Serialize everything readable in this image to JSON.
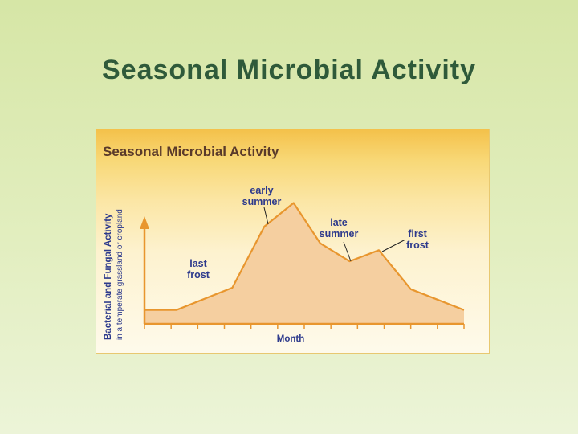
{
  "slide": {
    "title": "Seasonal Microbial Activity"
  },
  "colors": {
    "background": "#dbe9b0",
    "title": "#2f5a3a",
    "panel_top": "#f4c14a",
    "panel_bottom": "#fefaeb",
    "curve_fill": "#f5cfa0",
    "curve_stroke": "#e8962e",
    "axis": "#e8962e",
    "label_text": "#2d3a8c"
  },
  "chart_data": {
    "type": "area",
    "title": "Seasonal Microbial Activity",
    "ylabel": "Bacterial and Fungal Activity",
    "ylabel_sub": "in a temperate grassland or cropland",
    "xlabel": "Month",
    "x_ticks_count": 12,
    "x": [
      0,
      1.2,
      3.3,
      4.5,
      5.6,
      6.6,
      7.7,
      8.8,
      10.0,
      12.0
    ],
    "y": [
      1.0,
      1.0,
      2.6,
      7.0,
      8.7,
      5.8,
      4.5,
      5.3,
      2.5,
      1.0
    ],
    "xlim": [
      0,
      12
    ],
    "ylim": [
      0,
      10
    ],
    "grid": false,
    "annotations": [
      {
        "text": [
          "early",
          "summer"
        ],
        "x": 5.0,
        "y": 7.8
      },
      {
        "text": [
          "late",
          "summer"
        ],
        "x": 7.6,
        "y": 4.8
      },
      {
        "text": [
          "first",
          "frost"
        ],
        "x": 8.8,
        "y": 5.3
      },
      {
        "text": [
          "last",
          "frost"
        ],
        "x": 2.3,
        "y": 1.9
      }
    ]
  }
}
